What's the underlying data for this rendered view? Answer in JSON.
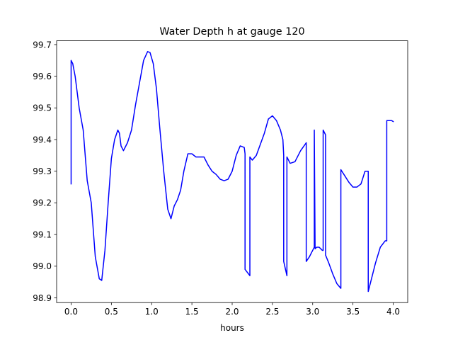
{
  "chart_data": {
    "type": "line",
    "title": "Water Depth h at gauge 120",
    "xlabel": "hours",
    "ylabel": "",
    "xlim": [
      -0.18,
      4.18
    ],
    "ylim": [
      98.885,
      99.712
    ],
    "xticks": [
      0.0,
      0.5,
      1.0,
      1.5,
      2.0,
      2.5,
      3.0,
      3.5,
      4.0
    ],
    "xtick_labels": [
      "0.0",
      "0.5",
      "1.0",
      "1.5",
      "2.0",
      "2.5",
      "3.0",
      "3.5",
      "4.0"
    ],
    "yticks": [
      98.9,
      99.0,
      99.1,
      99.2,
      99.3,
      99.4,
      99.5,
      99.6,
      99.7
    ],
    "ytick_labels": [
      "98.9",
      "99.0",
      "99.1",
      "99.2",
      "99.3",
      "99.4",
      "99.5",
      "99.6",
      "99.7"
    ],
    "grid": false,
    "series": [
      {
        "color": "#0000ff",
        "x": [
          0.0,
          0.0,
          0.02,
          0.05,
          0.1,
          0.15,
          0.2,
          0.25,
          0.3,
          0.35,
          0.38,
          0.42,
          0.46,
          0.5,
          0.54,
          0.58,
          0.6,
          0.62,
          0.65,
          0.7,
          0.75,
          0.8,
          0.85,
          0.9,
          0.95,
          0.98,
          1.02,
          1.06,
          1.1,
          1.15,
          1.2,
          1.24,
          1.28,
          1.32,
          1.36,
          1.4,
          1.45,
          1.5,
          1.55,
          1.6,
          1.65,
          1.7,
          1.75,
          1.8,
          1.85,
          1.9,
          1.95,
          2.0,
          2.05,
          2.1,
          2.15,
          2.16,
          2.16,
          2.22,
          2.22,
          2.25,
          2.3,
          2.35,
          2.4,
          2.45,
          2.5,
          2.55,
          2.6,
          2.63,
          2.64,
          2.64,
          2.68,
          2.68,
          2.72,
          2.78,
          2.85,
          2.92,
          2.92,
          2.96,
          3.0,
          3.02,
          3.02,
          3.03,
          3.05,
          3.08,
          3.12,
          3.13,
          3.13,
          3.16,
          3.16,
          3.2,
          3.25,
          3.3,
          3.35,
          3.35,
          3.4,
          3.45,
          3.5,
          3.55,
          3.6,
          3.65,
          3.69,
          3.69,
          3.72,
          3.78,
          3.84,
          3.9,
          3.92,
          3.92,
          3.98,
          4.0
        ],
        "y": [
          99.26,
          99.65,
          99.64,
          99.6,
          99.5,
          99.43,
          99.27,
          99.2,
          99.03,
          98.96,
          98.955,
          99.05,
          99.2,
          99.34,
          99.4,
          99.43,
          99.42,
          99.38,
          99.365,
          99.39,
          99.43,
          99.51,
          99.58,
          99.65,
          99.678,
          99.675,
          99.64,
          99.56,
          99.44,
          99.3,
          99.18,
          99.15,
          99.19,
          99.21,
          99.24,
          99.3,
          99.355,
          99.355,
          99.345,
          99.345,
          99.345,
          99.32,
          99.3,
          99.29,
          99.275,
          99.27,
          99.275,
          99.3,
          99.35,
          99.38,
          99.375,
          99.355,
          98.99,
          98.97,
          99.345,
          99.335,
          99.35,
          99.385,
          99.42,
          99.465,
          99.475,
          99.46,
          99.43,
          99.4,
          99.35,
          99.015,
          98.97,
          99.345,
          99.325,
          99.33,
          99.365,
          99.39,
          99.015,
          99.03,
          99.05,
          99.06,
          99.43,
          99.055,
          99.06,
          99.06,
          99.05,
          99.05,
          99.43,
          99.415,
          99.035,
          99.01,
          98.975,
          98.945,
          98.93,
          99.305,
          99.285,
          99.265,
          99.25,
          99.25,
          99.26,
          99.3,
          99.3,
          98.92,
          98.95,
          99.01,
          99.06,
          99.08,
          99.08,
          99.46,
          99.46,
          99.457
        ]
      }
    ]
  }
}
